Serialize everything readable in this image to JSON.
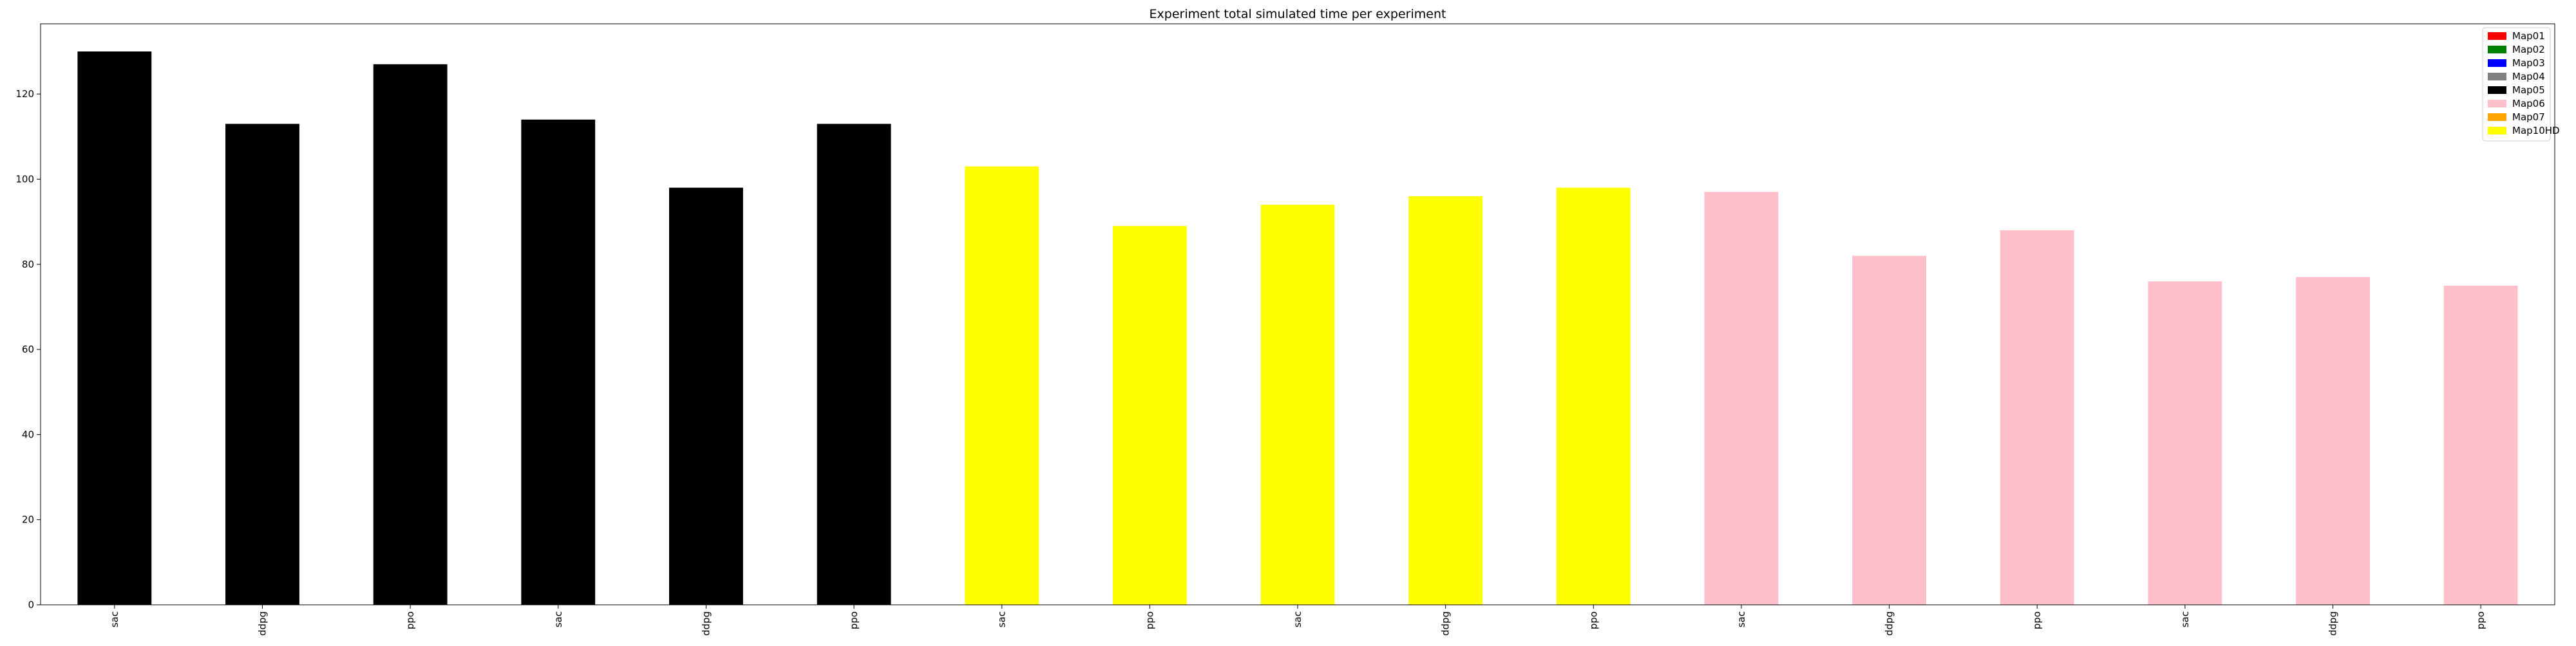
{
  "chart_data": {
    "type": "bar",
    "title": "Experiment total simulated time per experiment",
    "xlabel": "",
    "ylabel": "",
    "ylim": [
      0,
      136.5
    ],
    "yticks": [
      0,
      20,
      40,
      60,
      80,
      100,
      120
    ],
    "grid": false,
    "legend_position": "top-right",
    "legend": [
      {
        "label": "Map01",
        "color": "#ff0000"
      },
      {
        "label": "Map02",
        "color": "#008000"
      },
      {
        "label": "Map03",
        "color": "#0000ff"
      },
      {
        "label": "Map04",
        "color": "#808080"
      },
      {
        "label": "Map05",
        "color": "#000000"
      },
      {
        "label": "Map06",
        "color": "#ffc0cb"
      },
      {
        "label": "Map07",
        "color": "#ffa500"
      },
      {
        "label": "Map10HD",
        "color": "#ffff00"
      }
    ],
    "categories": [
      "sac",
      "ddpg",
      "ppo",
      "sac",
      "ddpg",
      "ppo",
      "sac",
      "ppo",
      "sac",
      "ddpg",
      "ppo",
      "sac",
      "ddpg",
      "ppo",
      "sac",
      "ddpg",
      "ppo"
    ],
    "values": [
      130,
      113,
      127,
      114,
      98,
      113,
      103,
      89,
      94,
      96,
      98,
      97,
      82,
      88,
      76,
      77,
      75
    ],
    "bar_colors": [
      "#000000",
      "#000000",
      "#000000",
      "#000000",
      "#000000",
      "#000000",
      "#ffff00",
      "#ffff00",
      "#ffff00",
      "#ffff00",
      "#ffff00",
      "#ffc0cb",
      "#ffc0cb",
      "#ffc0cb",
      "#ffc0cb",
      "#ffc0cb",
      "#ffc0cb"
    ]
  }
}
